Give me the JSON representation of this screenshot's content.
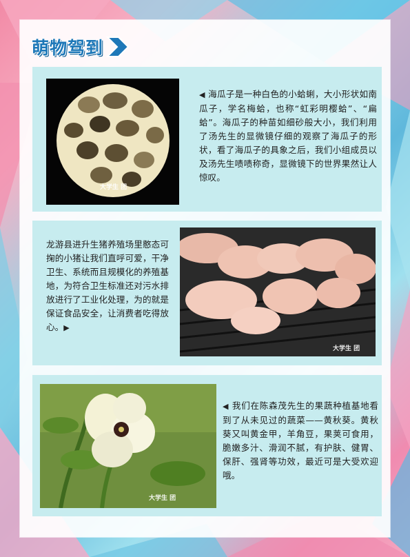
{
  "header": {
    "title": "萌物驾到"
  },
  "sections": [
    {
      "text": "海瓜子是一种白色的小蛤蜊，大小形状如南瓜子，学名梅蛤，也称“虹彩明樱蛤”、“扁蛤”。海瓜子的种苗如细砂般大小，我们利用了汤先生的显微镜仔细的观察了海瓜子的形状，看了海瓜子的具象之后，我们小组成员以及汤先生啧啧称奇，显微镜下的世界果然让人惊叹。",
      "image": "microscope-clam-photo",
      "watermark": "大学生 团"
    },
    {
      "text": "龙游县进升生猪养殖场里憨态可掬的小猪让我们直呼可爱，干净卫生、系统而且规模化的养殖基地，为符合卫生标准还对污水排放进行了工业化处理，为的就是保证食品安全，让消费者吃得放心。",
      "image": "piglets-photo",
      "watermark": "大学生 团"
    },
    {
      "text": "我们在陈森茂先生的果蔬种植基地看到了从未见过的蔬菜——黄秋葵。黄秋葵又叫黄金甲，羊角豆，果荚可食用， 脆嫩多汁、滑润不腻，有护肤、健胃、保肝、强肾等功效，最近可是大受欢迎哦。",
      "image": "okra-flower-photo",
      "watermark": "大学生 团"
    }
  ],
  "colors": {
    "accent": "#1e78b8",
    "card": "#c7ecef",
    "panel": "#ffffff"
  },
  "icons": {
    "left_marker": "triangle-left-icon",
    "right_marker": "triangle-right-icon"
  }
}
